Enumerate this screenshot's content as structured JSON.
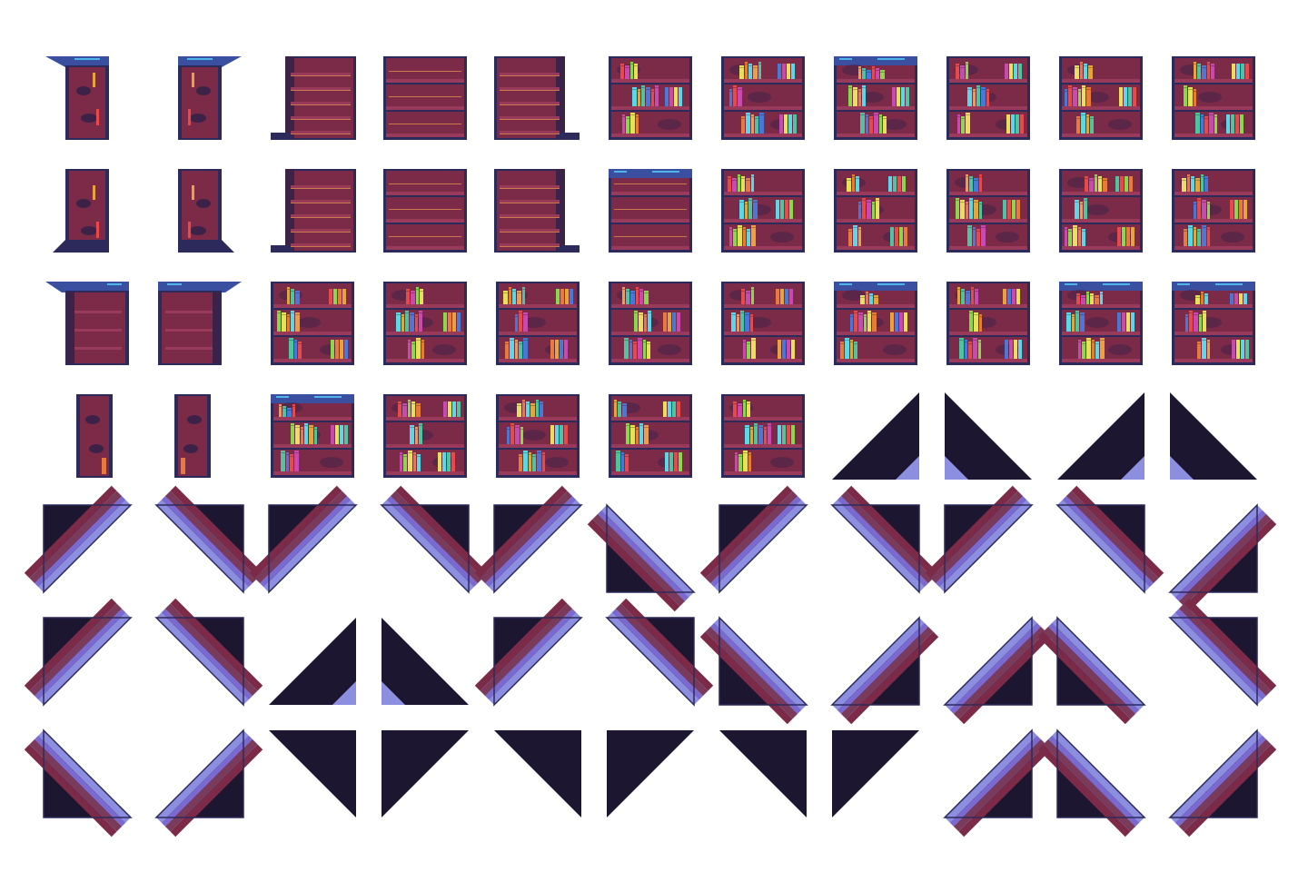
{
  "tileset": {
    "palette": {
      "background": "#ffffff",
      "wood": "#7b2a48",
      "wood_dark": "#3d2248",
      "trim": "#2c2a5a",
      "plank_highlight": "#c97a4a",
      "shelf_light": "#9a3a5a",
      "crown_blue": "#3b4fa0",
      "crown_cyan": "#4fb4e8",
      "shadow": "#1c1630",
      "panel_lilac": "#7a6ad0",
      "panel_pale": "#8c8ee0",
      "stripe_maroon": "#7a3a5c",
      "books": [
        "#e8a33c",
        "#4fc4a0",
        "#4a78d8",
        "#e84a4a",
        "#c84ab0",
        "#8ad84a",
        "#e8e05a",
        "#e87a3c",
        "#5ad8e8"
      ]
    },
    "rows": [
      {
        "tiles": [
          {
            "kind": "post-top"
          },
          {
            "kind": "post-top",
            "mirror": true
          },
          {
            "kind": "shelf-empty-left"
          },
          {
            "kind": "shelf-empty"
          },
          {
            "kind": "shelf-empty-right"
          },
          {
            "kind": "bookshelf",
            "variant": 1
          },
          {
            "kind": "bookshelf",
            "variant": 2
          },
          {
            "kind": "bookshelf",
            "variant": 3,
            "crown": true
          },
          {
            "kind": "bookshelf",
            "variant": 4
          },
          {
            "kind": "bookshelf",
            "variant": 5
          },
          {
            "kind": "bookshelf",
            "variant": 6
          }
        ]
      },
      {
        "tiles": [
          {
            "kind": "post-bottom"
          },
          {
            "kind": "post-bottom",
            "mirror": true
          },
          {
            "kind": "shelf-empty-left"
          },
          {
            "kind": "shelf-empty"
          },
          {
            "kind": "shelf-empty-right"
          },
          {
            "kind": "shelf-empty",
            "crown": true
          },
          {
            "kind": "bookshelf",
            "variant": 7
          },
          {
            "kind": "bookshelf",
            "variant": 8
          },
          {
            "kind": "bookshelf",
            "variant": 9
          },
          {
            "kind": "bookshelf",
            "variant": 10
          },
          {
            "kind": "bookshelf",
            "variant": 11
          }
        ]
      },
      {
        "tiles": [
          {
            "kind": "crown-left"
          },
          {
            "kind": "crown-right"
          },
          {
            "kind": "bookshelf",
            "variant": 12
          },
          {
            "kind": "bookshelf",
            "variant": 13
          },
          {
            "kind": "bookshelf",
            "variant": 14
          },
          {
            "kind": "bookshelf",
            "variant": 15
          },
          {
            "kind": "bookshelf",
            "variant": 16
          },
          {
            "kind": "bookshelf",
            "variant": 17,
            "crown": true
          },
          {
            "kind": "bookshelf",
            "variant": 18
          },
          {
            "kind": "bookshelf",
            "variant": 19,
            "crown": true
          },
          {
            "kind": "bookshelf",
            "variant": 20,
            "crown": true
          }
        ]
      },
      {
        "tiles": [
          {
            "kind": "post-narrow"
          },
          {
            "kind": "post-narrow",
            "mirror": true
          },
          {
            "kind": "bookshelf",
            "variant": 21,
            "crown": true
          },
          {
            "kind": "bookshelf",
            "variant": 22
          },
          {
            "kind": "bookshelf",
            "variant": 23
          },
          {
            "kind": "bookshelf",
            "variant": 24
          },
          {
            "kind": "bookshelf",
            "variant": 25
          },
          {
            "kind": "dark-tri",
            "corner": "br"
          },
          {
            "kind": "dark-tri",
            "corner": "bl"
          },
          {
            "kind": "dark-tri",
            "corner": "br"
          },
          {
            "kind": "dark-tri",
            "corner": "bl"
          }
        ]
      },
      {
        "tiles": [
          {
            "kind": "stair",
            "corner": "tl"
          },
          {
            "kind": "stair",
            "corner": "tr"
          },
          {
            "kind": "stair",
            "corner": "tl"
          },
          {
            "kind": "stair",
            "corner": "tr"
          },
          {
            "kind": "stair",
            "corner": "tl"
          },
          {
            "kind": "stair",
            "corner": "bl"
          },
          {
            "kind": "stair",
            "corner": "tl"
          },
          {
            "kind": "stair",
            "corner": "tr"
          },
          {
            "kind": "stair",
            "corner": "tl"
          },
          {
            "kind": "stair",
            "corner": "tr"
          },
          {
            "kind": "stair",
            "corner": "br"
          }
        ]
      },
      {
        "tiles": [
          {
            "kind": "stair",
            "corner": "tl"
          },
          {
            "kind": "stair",
            "corner": "tr"
          },
          {
            "kind": "dark-tri",
            "corner": "br"
          },
          {
            "kind": "dark-tri",
            "corner": "bl"
          },
          {
            "kind": "stair",
            "corner": "tl"
          },
          {
            "kind": "stair",
            "corner": "tr"
          },
          {
            "kind": "stair",
            "corner": "bl"
          },
          {
            "kind": "stair",
            "corner": "br"
          },
          {
            "kind": "stair",
            "corner": "br"
          },
          {
            "kind": "stair",
            "corner": "bl"
          },
          {
            "kind": "stair",
            "corner": "tr"
          }
        ]
      },
      {
        "tiles": [
          {
            "kind": "stair",
            "corner": "bl"
          },
          {
            "kind": "stair",
            "corner": "br"
          },
          {
            "kind": "dark-tri",
            "corner": "tr"
          },
          {
            "kind": "dark-tri",
            "corner": "tl"
          },
          {
            "kind": "dark-tri",
            "corner": "tr"
          },
          {
            "kind": "dark-tri",
            "corner": "tl"
          },
          {
            "kind": "dark-tri",
            "corner": "tr"
          },
          {
            "kind": "dark-tri",
            "corner": "tl"
          },
          {
            "kind": "stair",
            "corner": "br"
          },
          {
            "kind": "stair",
            "corner": "bl"
          },
          {
            "kind": "stair",
            "corner": "br"
          }
        ]
      }
    ]
  }
}
